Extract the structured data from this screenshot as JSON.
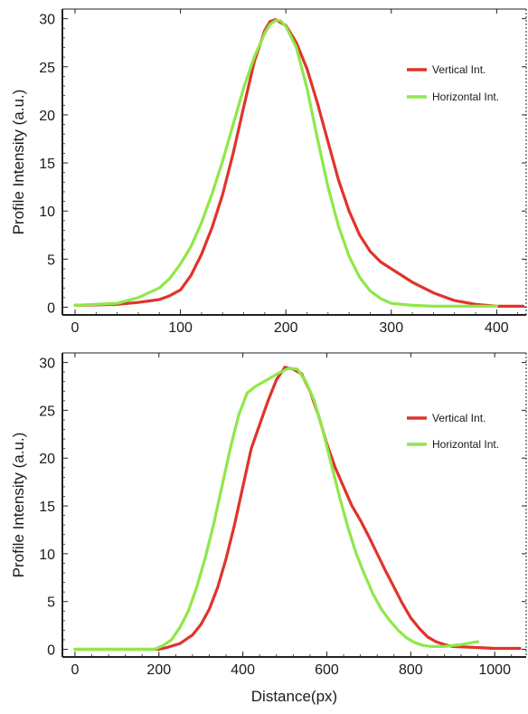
{
  "chart_data": [
    {
      "type": "line",
      "title": "",
      "xlabel": "",
      "ylabel": "Profile Intensity (a.u.)",
      "xlim": [
        -12,
        428
      ],
      "ylim": [
        -0.8,
        31
      ],
      "xticks": [
        0,
        100,
        200,
        300,
        400
      ],
      "yticks": [
        0,
        5,
        10,
        15,
        20,
        25,
        30
      ],
      "xtick_labels": [
        "0",
        "100",
        "200",
        "300",
        "400"
      ],
      "ytick_labels": [
        "0",
        "5",
        "10",
        "15",
        "20",
        "25",
        "30"
      ],
      "grid": false,
      "legend_position": "right",
      "series": [
        {
          "name": "Vertical Int.",
          "color": "#e0342a",
          "x": [
            0,
            40,
            60,
            80,
            90,
            100,
            110,
            120,
            130,
            140,
            150,
            160,
            170,
            180,
            185,
            190,
            200,
            210,
            220,
            230,
            240,
            250,
            260,
            270,
            280,
            290,
            300,
            310,
            320,
            340,
            360,
            380,
            400,
            425
          ],
          "y": [
            0.2,
            0.3,
            0.5,
            0.8,
            1.2,
            1.8,
            3.3,
            5.5,
            8.3,
            11.7,
            16.0,
            20.8,
            25.5,
            28.8,
            29.7,
            29.9,
            29.3,
            27.5,
            24.8,
            21.2,
            17.2,
            13.2,
            10.0,
            7.5,
            5.8,
            4.7,
            4.0,
            3.3,
            2.6,
            1.5,
            0.7,
            0.3,
            0.1,
            0.1
          ]
        },
        {
          "name": "Horizontal Int.",
          "color": "#8ee84a",
          "x": [
            0,
            40,
            60,
            80,
            90,
            100,
            110,
            120,
            130,
            140,
            150,
            160,
            170,
            180,
            185,
            190,
            195,
            200,
            210,
            220,
            230,
            240,
            250,
            260,
            270,
            280,
            290,
            300,
            320,
            340,
            360,
            380,
            400
          ],
          "y": [
            0.2,
            0.4,
            1.0,
            2.0,
            3.0,
            4.5,
            6.3,
            8.8,
            11.8,
            15.2,
            19.0,
            22.8,
            26.0,
            28.5,
            29.4,
            29.8,
            29.8,
            29.2,
            27.0,
            22.8,
            17.5,
            12.5,
            8.4,
            5.3,
            3.1,
            1.7,
            0.9,
            0.4,
            0.2,
            0.1,
            0.1,
            0.1,
            0.1
          ]
        }
      ]
    },
    {
      "type": "line",
      "title": "",
      "xlabel": "Distance(px)",
      "ylabel": "Profile Intensity (a.u.)",
      "xlim": [
        -30,
        1075
      ],
      "ylim": [
        -0.8,
        31
      ],
      "xticks": [
        0,
        200,
        400,
        600,
        800,
        1000
      ],
      "yticks": [
        0,
        5,
        10,
        15,
        20,
        25,
        30
      ],
      "xtick_labels": [
        "0",
        "200",
        "400",
        "600",
        "800",
        "1000"
      ],
      "ytick_labels": [
        "0",
        "5",
        "10",
        "15",
        "20",
        "25",
        "30"
      ],
      "grid": false,
      "legend_position": "right",
      "series": [
        {
          "name": "Vertical Int.",
          "color": "#e0342a",
          "x": [
            0,
            200,
            220,
            250,
            280,
            300,
            320,
            340,
            360,
            380,
            400,
            420,
            440,
            460,
            480,
            500,
            520,
            540,
            560,
            580,
            600,
            620,
            640,
            660,
            680,
            700,
            720,
            740,
            760,
            780,
            800,
            820,
            840,
            860,
            880,
            900,
            950,
            1000,
            1060
          ],
          "y": [
            0,
            0,
            0.2,
            0.6,
            1.5,
            2.6,
            4.2,
            6.5,
            9.5,
            13.0,
            17.0,
            21.0,
            23.5,
            26.0,
            28.2,
            29.5,
            29.3,
            28.8,
            27.0,
            24.5,
            21.5,
            19.0,
            17.0,
            15.0,
            13.5,
            11.8,
            10.0,
            8.2,
            6.5,
            4.8,
            3.3,
            2.2,
            1.3,
            0.8,
            0.5,
            0.3,
            0.2,
            0.1,
            0.1
          ]
        },
        {
          "name": "Horizontal Int.",
          "color": "#8ee84a",
          "x": [
            0,
            190,
            210,
            230,
            250,
            270,
            290,
            310,
            330,
            350,
            370,
            390,
            410,
            430,
            450,
            470,
            490,
            510,
            530,
            550,
            570,
            590,
            610,
            630,
            650,
            670,
            690,
            710,
            730,
            750,
            770,
            790,
            810,
            830,
            850,
            880,
            920,
            960
          ],
          "y": [
            0,
            0,
            0.4,
            1.0,
            2.3,
            4.0,
            6.5,
            9.5,
            13.0,
            17.0,
            21.0,
            24.5,
            26.8,
            27.5,
            28.0,
            28.5,
            29.0,
            29.4,
            29.3,
            28.0,
            26.0,
            23.0,
            19.5,
            16.0,
            12.8,
            10.0,
            7.8,
            5.8,
            4.2,
            3.0,
            2.0,
            1.2,
            0.7,
            0.4,
            0.3,
            0.3,
            0.5,
            0.8
          ]
        }
      ]
    }
  ]
}
